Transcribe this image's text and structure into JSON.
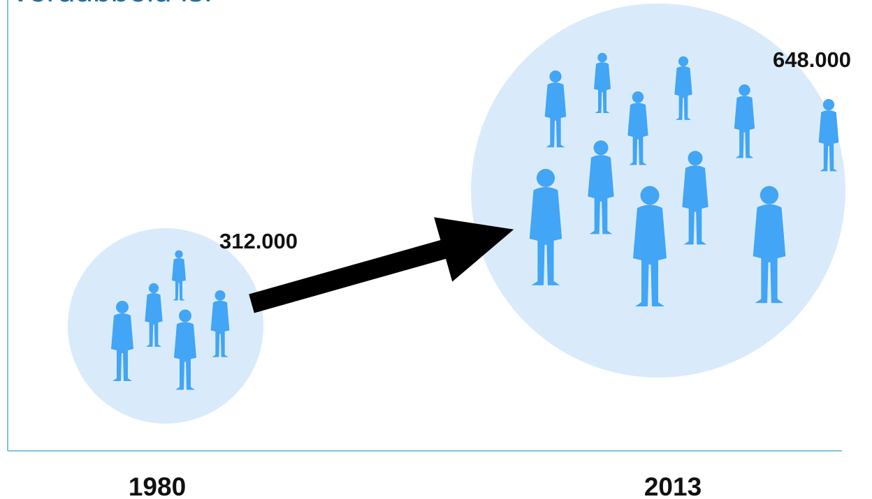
{
  "title": "verdubbeld is!",
  "groups": [
    {
      "year": "1980",
      "count": "312.000"
    },
    {
      "year": "2013",
      "count": "648.000"
    }
  ]
}
